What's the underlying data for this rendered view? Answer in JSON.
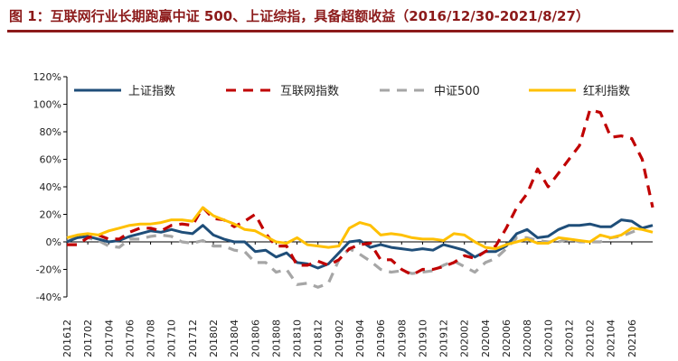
{
  "title": "图 1：互联网行业长期跑赢中证 500、上证综指，具备超额收益（2016/12/30-2021/8/27）",
  "colors": {
    "title": "#8c1a1a",
    "sh": "#1f4e79",
    "inet": "#c00000",
    "zz500": "#a6a6a6",
    "hl": "#ffc000"
  },
  "chart_data": {
    "type": "line",
    "title": "图 1：互联网行业长期跑赢中证 500、上证综指，具备超额收益（2016/12/30-2021/8/27）",
    "xlabel": "",
    "ylabel": "",
    "ylim": [
      -40,
      120
    ],
    "yticks": [
      -40,
      -20,
      0,
      20,
      40,
      60,
      80,
      100,
      120
    ],
    "ytick_labels": [
      "-40%",
      "-20%",
      "0%",
      "20%",
      "40%",
      "60%",
      "80%",
      "100%",
      "120%"
    ],
    "grid": false,
    "legend_position": "top",
    "x": [
      "201612",
      "201701",
      "201702",
      "201703",
      "201704",
      "201705",
      "201706",
      "201707",
      "201708",
      "201709",
      "201710",
      "201711",
      "201712",
      "201801",
      "201802",
      "201803",
      "201804",
      "201805",
      "201806",
      "201807",
      "201808",
      "201809",
      "201810",
      "201811",
      "201812",
      "201901",
      "201902",
      "201903",
      "201904",
      "201905",
      "201906",
      "201907",
      "201908",
      "201909",
      "201910",
      "201911",
      "201912",
      "202001",
      "202002",
      "202003",
      "202004",
      "202005",
      "202006",
      "202007",
      "202008",
      "202009",
      "202010",
      "202011",
      "202012",
      "202101",
      "202102",
      "202103",
      "202104",
      "202105",
      "202106",
      "202107",
      "202108"
    ],
    "xtick_labels": [
      "201612",
      "201702",
      "201704",
      "201706",
      "201708",
      "201710",
      "201712",
      "201802",
      "201804",
      "201806",
      "201808",
      "201810",
      "201812",
      "201902",
      "201904",
      "201906",
      "201908",
      "201910",
      "201912",
      "202002",
      "202004",
      "202006",
      "202008",
      "202010",
      "202012",
      "202102",
      "202104",
      "202106"
    ],
    "series": [
      {
        "name": "上证指数",
        "color": "#1f4e79",
        "dash": "solid",
        "values": [
          0,
          3,
          4,
          2,
          0,
          1,
          4,
          6,
          8,
          7,
          9,
          7,
          6,
          12,
          5,
          2,
          0,
          0,
          -7,
          -6,
          -11,
          -8,
          -15,
          -16,
          -19,
          -16,
          -8,
          0,
          1,
          -4,
          -2,
          -4,
          -5,
          -6,
          -5,
          -6,
          -2,
          -4,
          -6,
          -11,
          -7,
          -7,
          -3,
          6,
          9,
          3,
          4,
          9,
          12,
          12,
          13,
          11,
          11,
          16,
          15,
          10,
          12
        ]
      },
      {
        "name": "互联网指数",
        "color": "#c00000",
        "dash": "dash",
        "values": [
          -2,
          -2,
          3,
          5,
          2,
          2,
          7,
          10,
          10,
          8,
          12,
          13,
          12,
          25,
          17,
          16,
          11,
          15,
          20,
          6,
          -3,
          -3,
          -17,
          -17,
          -14,
          -17,
          -13,
          -5,
          -2,
          -1,
          -13,
          -13,
          -20,
          -24,
          -20,
          -20,
          -18,
          -15,
          -10,
          -12,
          -7,
          -3,
          10,
          25,
          35,
          53,
          40,
          50,
          60,
          70,
          96,
          94,
          76,
          77,
          75,
          60,
          25
        ]
      },
      {
        "name": "中证500",
        "color": "#a6a6a6",
        "dash": "dash",
        "values": [
          0,
          4,
          3,
          1,
          -3,
          -4,
          2,
          2,
          4,
          5,
          4,
          0,
          -1,
          1,
          -3,
          -3,
          -6,
          -7,
          -15,
          -15,
          -22,
          -20,
          -31,
          -30,
          -33,
          -30,
          -13,
          -5,
          -9,
          -14,
          -20,
          -22,
          -21,
          -23,
          -22,
          -21,
          -17,
          -14,
          -18,
          -22,
          -15,
          -12,
          -5,
          3,
          3,
          1,
          0,
          0,
          2,
          0,
          0,
          0,
          3,
          4,
          7,
          10,
          12
        ]
      },
      {
        "name": "红利指数",
        "color": "#ffc000",
        "dash": "solid",
        "values": [
          3,
          5,
          6,
          5,
          8,
          10,
          12,
          13,
          13,
          14,
          16,
          16,
          15,
          25,
          19,
          16,
          13,
          9,
          8,
          4,
          0,
          -1,
          3,
          -2,
          -3,
          -4,
          -3,
          10,
          14,
          12,
          5,
          6,
          5,
          3,
          2,
          2,
          1,
          6,
          5,
          0,
          -4,
          -5,
          -2,
          0,
          2,
          -1,
          -1,
          3,
          2,
          1,
          0,
          5,
          3,
          5,
          10,
          9,
          7
        ]
      }
    ]
  }
}
